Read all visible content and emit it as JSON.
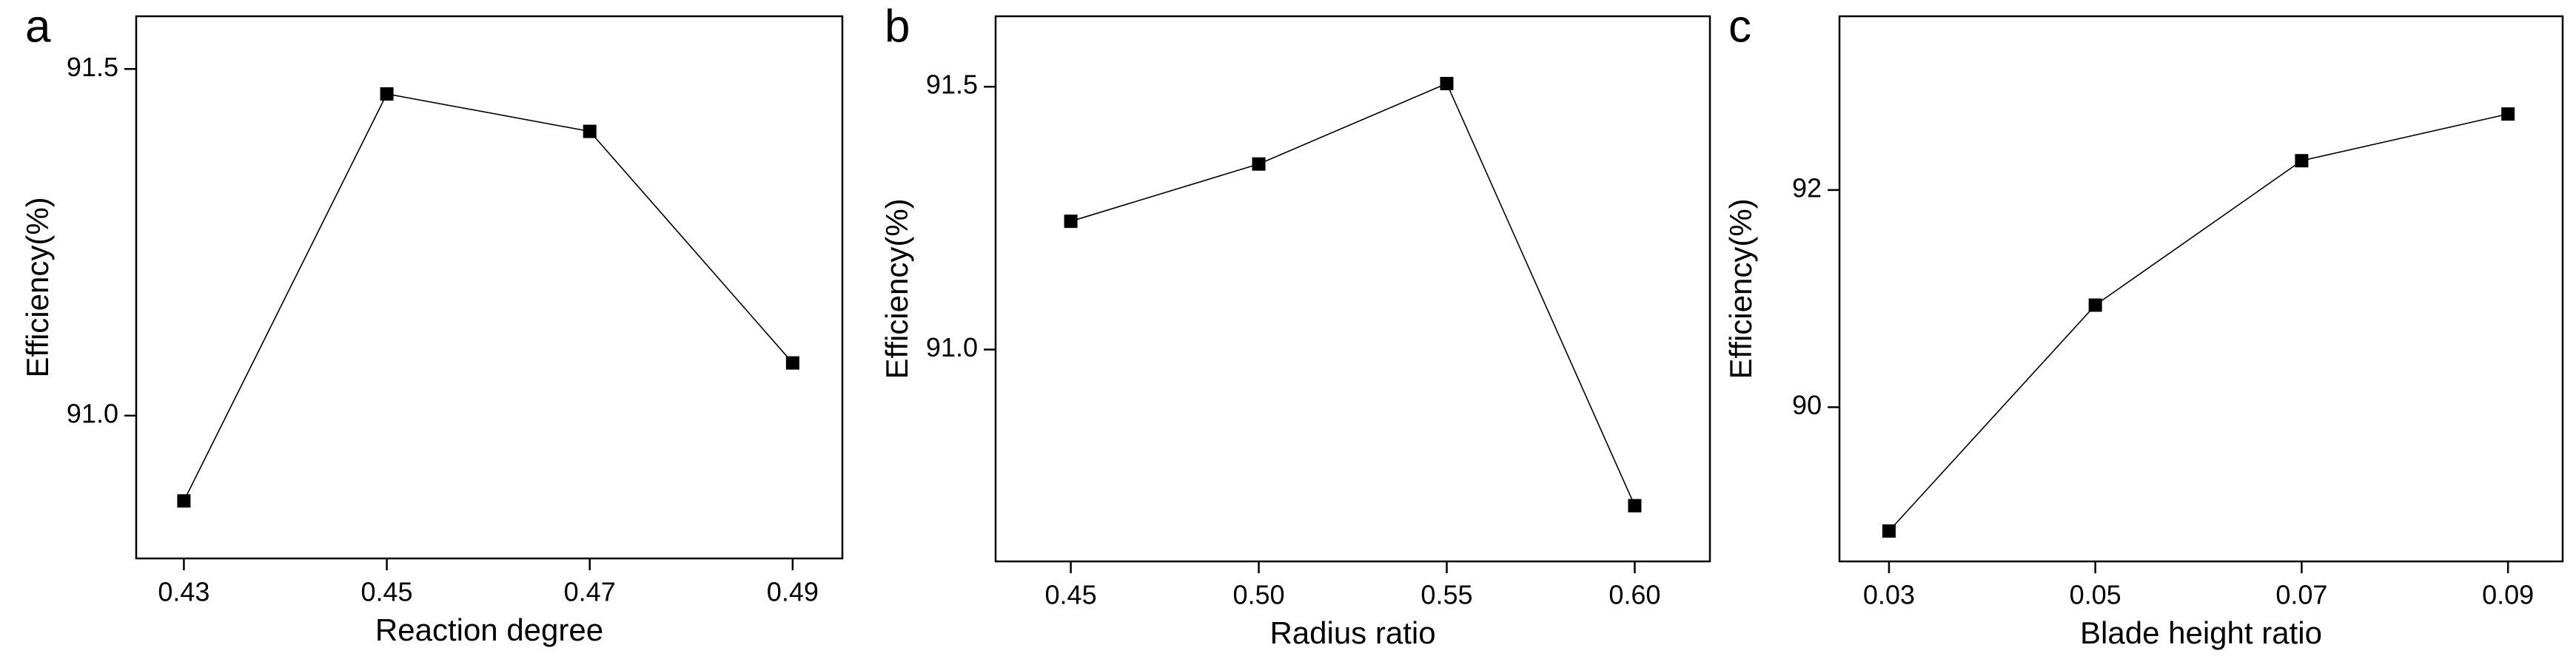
{
  "chart_data": [
    {
      "type": "line",
      "label": "a",
      "xlabel": "Reaction degree",
      "ylabel": "Efficiency(%)",
      "x": [
        0.43,
        0.45,
        0.47,
        0.49
      ],
      "values": [
        90.877,
        91.464,
        91.41,
        91.076
      ],
      "color": "#000000",
      "xlim": [
        0.4253,
        0.4949
      ],
      "ylim": [
        90.794,
        91.576
      ],
      "xticks": [
        0.43,
        0.45,
        0.47,
        0.49
      ],
      "yticks": [
        {
          "value": 91.0,
          "label": "91.0"
        },
        91.5
      ]
    },
    {
      "type": "line",
      "label": "b",
      "xlabel": "Radius ratio",
      "ylabel": "Efficiency(%)",
      "x": [
        0.45,
        0.5,
        0.55,
        0.6
      ],
      "values": [
        91.244,
        91.353,
        91.506,
        90.703
      ],
      "color": "#000000",
      "xlim": [
        0.43,
        0.62
      ],
      "ylim": [
        90.597,
        91.634
      ],
      "xticks": [
        0.45,
        {
          "value": 0.5,
          "label": "0.50"
        },
        0.55,
        {
          "value": 0.6,
          "label": "0.60"
        }
      ],
      "yticks": [
        {
          "value": 91.0,
          "label": "91.0"
        },
        91.5
      ]
    },
    {
      "type": "line",
      "label": "c",
      "xlabel": "Blade height ratio",
      "ylabel": "Efficiency(%)",
      "x": [
        0.03,
        0.05,
        0.07,
        0.09
      ],
      "values": [
        88.86,
        90.94,
        92.27,
        92.7
      ],
      "color": "#000000",
      "xlim": [
        0.0252,
        0.0953
      ],
      "ylim": [
        88.58,
        93.6
      ],
      "xticks": [
        0.03,
        0.05,
        0.07,
        0.09
      ],
      "yticks": [
        90,
        92
      ]
    }
  ]
}
